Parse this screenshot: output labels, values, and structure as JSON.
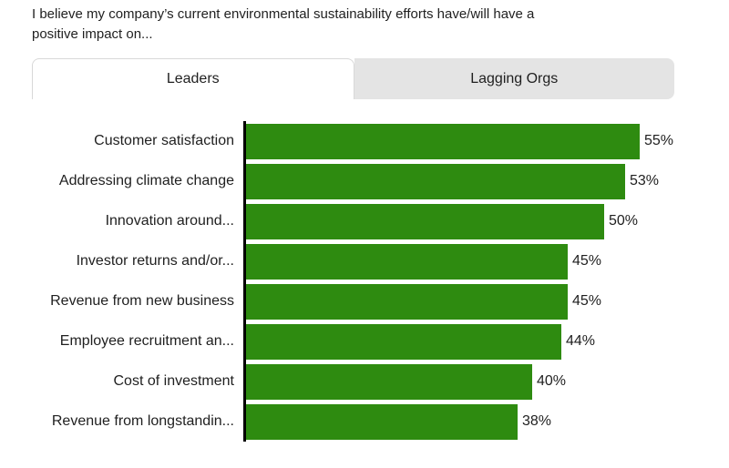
{
  "title": {
    "line1": "I believe my company’s current environmental sustainability efforts have/will have a",
    "line2": "positive impact on..."
  },
  "tabs": [
    {
      "label": "Leaders",
      "active": true
    },
    {
      "label": "Lagging Orgs",
      "active": false
    }
  ],
  "chart_data": {
    "type": "bar",
    "orientation": "horizontal",
    "title": "I believe my company’s current environmental sustainability efforts have/will have a positive impact on...",
    "categories": [
      "Customer satisfaction",
      "Addressing climate change",
      "Innovation around...",
      "Investor returns and/or...",
      "Revenue from new business",
      "Employee recruitment an...",
      "Cost of investment",
      "Revenue from longstandin..."
    ],
    "values": [
      55,
      53,
      50,
      45,
      45,
      44,
      40,
      38
    ],
    "value_suffix": "%",
    "data_labels": [
      "55%",
      "53%",
      "50%",
      "45%",
      "45%",
      "44%",
      "40%",
      "38%"
    ],
    "xlim": [
      0,
      55
    ],
    "grid": false,
    "legend": "none",
    "bar_color": "#2e8b10",
    "axis_color": "#000000"
  },
  "colors": {
    "active_tab_bg": "#ffffff",
    "inactive_tab_bg": "#e4e4e4",
    "tab_border": "#d8d8d8",
    "text": "#1f1f1f"
  }
}
